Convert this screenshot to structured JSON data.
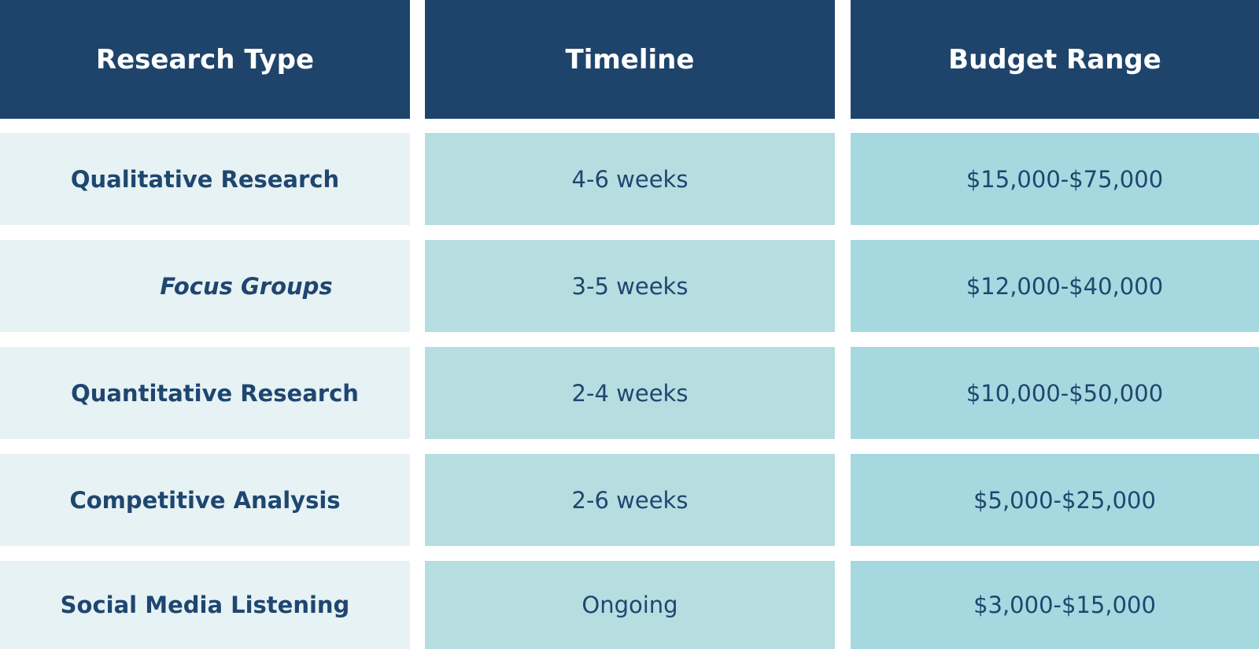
{
  "table": {
    "headers": [
      "Research Type",
      "Timeline",
      "Budget Range"
    ],
    "rows": [
      {
        "type": "Qualitative Research",
        "timeline": "4-6 weeks",
        "budget": "$15,000-$75,000"
      },
      {
        "type": "Focus Groups",
        "timeline": "3-5 weeks",
        "budget": "$12,000-$40,000"
      },
      {
        "type": "Quantitative Research",
        "timeline": "2-4 weeks",
        "budget": "$10,000-$50,000"
      },
      {
        "type": "Competitive Analysis",
        "timeline": "2-6 weeks",
        "budget": "$5,000-$25,000"
      },
      {
        "type": "Social Media Listening",
        "timeline": "Ongoing",
        "budget": "$3,000-$15,000"
      }
    ]
  },
  "colors": {
    "header_bg": "#1f446c",
    "header_text": "#ffffff",
    "col1_bg": "#e6f2f3",
    "col2_bg": "#b6dde0",
    "col3_bg": "#a6d9df",
    "body_text": "#1f4670"
  }
}
